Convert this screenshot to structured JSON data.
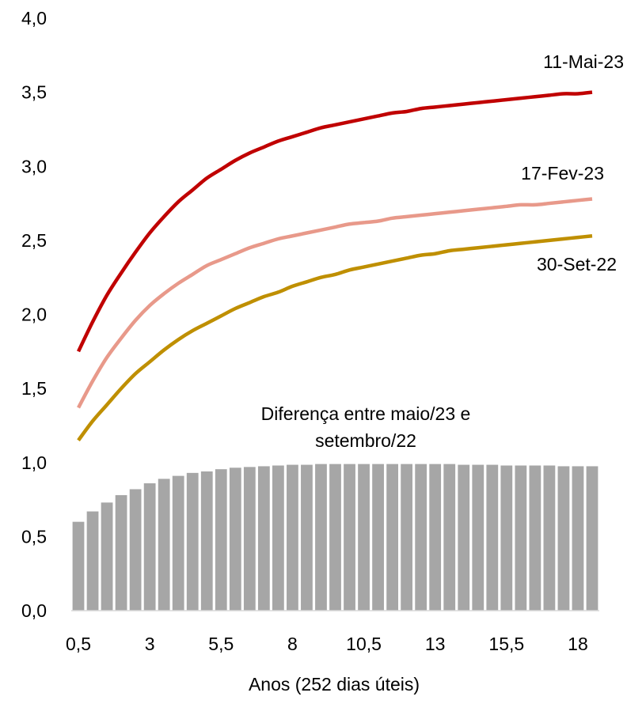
{
  "chart_data": {
    "type": "bar+line",
    "xlabel": "Anos (252 dias úteis)",
    "ylabel": "",
    "ylim": [
      0,
      4
    ],
    "y_ticks": [
      "0,0",
      "0,5",
      "1,0",
      "1,5",
      "2,0",
      "2,5",
      "3,0",
      "3,5",
      "4,0"
    ],
    "x_ticks": [
      "0,5",
      "3",
      "5,5",
      "8",
      "10,5",
      "13",
      "15,5",
      "18"
    ],
    "x_tick_values": [
      0.5,
      3,
      5.5,
      8,
      10.5,
      13,
      15.5,
      18
    ],
    "x": [
      0.5,
      1,
      1.5,
      2,
      2.5,
      3,
      3.5,
      4,
      4.5,
      5,
      5.5,
      6,
      6.5,
      7,
      7.5,
      8,
      8.5,
      9,
      9.5,
      10,
      10.5,
      11,
      11.5,
      12,
      12.5,
      13,
      13.5,
      14,
      14.5,
      15,
      15.5,
      16,
      16.5,
      17,
      17.5,
      18,
      18.5
    ],
    "grid": false,
    "legend": "none",
    "series": [
      {
        "name": "11-Mai-23",
        "kind": "line",
        "color": "#c00000",
        "values": [
          1.75,
          1.95,
          2.13,
          2.28,
          2.42,
          2.55,
          2.66,
          2.76,
          2.84,
          2.92,
          2.98,
          3.04,
          3.09,
          3.13,
          3.17,
          3.2,
          3.23,
          3.26,
          3.28,
          3.3,
          3.32,
          3.34,
          3.36,
          3.37,
          3.39,
          3.4,
          3.41,
          3.42,
          3.43,
          3.44,
          3.45,
          3.46,
          3.47,
          3.48,
          3.49,
          3.49,
          3.5
        ]
      },
      {
        "name": "17-Fev-23",
        "kind": "line",
        "color": "#e8998a",
        "values": [
          1.37,
          1.55,
          1.71,
          1.84,
          1.96,
          2.06,
          2.14,
          2.21,
          2.27,
          2.33,
          2.37,
          2.41,
          2.45,
          2.48,
          2.51,
          2.53,
          2.55,
          2.57,
          2.59,
          2.61,
          2.62,
          2.63,
          2.65,
          2.66,
          2.67,
          2.68,
          2.69,
          2.7,
          2.71,
          2.72,
          2.73,
          2.74,
          2.74,
          2.75,
          2.76,
          2.77,
          2.78
        ]
      },
      {
        "name": "30-Set-22",
        "kind": "line",
        "color": "#bf8f00",
        "values": [
          1.15,
          1.28,
          1.39,
          1.5,
          1.6,
          1.68,
          1.76,
          1.83,
          1.89,
          1.94,
          1.99,
          2.04,
          2.08,
          2.12,
          2.15,
          2.19,
          2.22,
          2.25,
          2.27,
          2.3,
          2.32,
          2.34,
          2.36,
          2.38,
          2.4,
          2.41,
          2.43,
          2.44,
          2.45,
          2.46,
          2.47,
          2.48,
          2.49,
          2.5,
          2.51,
          2.52,
          2.53
        ]
      },
      {
        "name": "Diferença entre maio/23 e setembro/22",
        "kind": "bar",
        "color": "#a6a6a6",
        "values": [
          0.6,
          0.67,
          0.73,
          0.78,
          0.82,
          0.86,
          0.89,
          0.91,
          0.93,
          0.94,
          0.955,
          0.965,
          0.97,
          0.975,
          0.98,
          0.985,
          0.985,
          0.99,
          0.99,
          0.99,
          0.99,
          0.99,
          0.99,
          0.99,
          0.99,
          0.99,
          0.99,
          0.985,
          0.985,
          0.985,
          0.98,
          0.98,
          0.98,
          0.98,
          0.975,
          0.975,
          0.975
        ]
      }
    ],
    "annotation": {
      "line1": "Diferença entre maio/23 e",
      "line2": "setembro/22"
    }
  }
}
